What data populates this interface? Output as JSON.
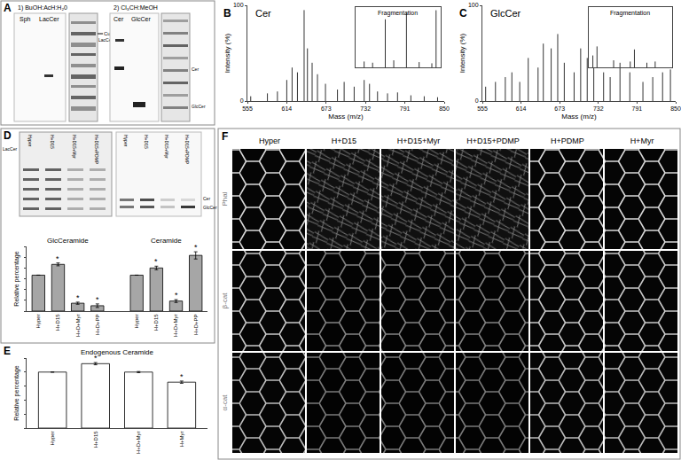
{
  "panels": {
    "A": {
      "label": "A",
      "solvent_1": "1) BuOH:AcH:H₂0",
      "solvent_2": "2) Cl₃CH:MeOH",
      "lanes_1": [
        "Sph",
        "LacCer"
      ],
      "lanes_2": [
        "Cer",
        "GlcCer"
      ],
      "marks_1": [
        "Cut",
        "LacCer"
      ],
      "marks_2": [
        "Cer",
        "GlcCer"
      ]
    },
    "D_plate": {
      "label": "D",
      "lanes": [
        "Hyper",
        "H+D15",
        "H+D15+Myr",
        "H+D15+PDMP"
      ],
      "marks_left": [
        "LacCer"
      ],
      "marks_right": [
        "Cer",
        "GlcCer"
      ]
    },
    "E": {
      "label": "E"
    },
    "F": {
      "label": "F",
      "columns": [
        "Hyper",
        "H+D15",
        "H+D15+Myr",
        "H+D15+PDMP",
        "H+PDMP",
        "H+Myr"
      ],
      "rows": [
        "Phal",
        "β-cat",
        "α-cat"
      ]
    }
  },
  "chart_data": [
    {
      "panel": "B",
      "type": "stem",
      "title": "Cer",
      "color": "#333333",
      "x": [
        560,
        585,
        600,
        614,
        622,
        630,
        640,
        645,
        652,
        660,
        672,
        690,
        700,
        715,
        730,
        738,
        750,
        765,
        780,
        800,
        820,
        840
      ],
      "values": [
        5,
        8,
        10,
        22,
        35,
        30,
        95,
        55,
        40,
        28,
        18,
        12,
        20,
        15,
        22,
        18,
        10,
        8,
        9,
        6,
        5,
        4
      ],
      "xlim": [
        555,
        850
      ],
      "xticks": [
        555,
        614,
        673,
        732,
        791,
        850
      ],
      "ylim": [
        0,
        100
      ],
      "yticks": [
        0,
        100
      ],
      "x_label": "Mass (m/z)",
      "y_label": "Intensity (%)",
      "inset": {
        "title": "Fragmentation",
        "x": [
          10,
          20,
          35,
          45,
          60,
          75,
          90,
          95
        ],
        "values": [
          10,
          8,
          80,
          12,
          90,
          9,
          7,
          95
        ],
        "xlim": [
          0,
          100
        ],
        "ylim": [
          0,
          100
        ]
      }
    },
    {
      "panel": "C",
      "type": "stem",
      "title": "GlcCer",
      "color": "#333333",
      "x": [
        560,
        575,
        590,
        600,
        612,
        625,
        640,
        648,
        660,
        670,
        680,
        695,
        705,
        715,
        725,
        740,
        750,
        765,
        780,
        800,
        815,
        830,
        842
      ],
      "values": [
        15,
        20,
        25,
        30,
        20,
        45,
        35,
        60,
        55,
        70,
        40,
        30,
        55,
        45,
        35,
        30,
        25,
        40,
        30,
        20,
        25,
        30,
        33
      ],
      "xlim": [
        555,
        850
      ],
      "xticks": [
        555,
        614,
        673,
        732,
        791,
        850
      ],
      "ylim": [
        0,
        100
      ],
      "yticks": [
        0,
        100
      ],
      "x_label": "Mass (m/z)",
      "y_label": "Intensity (%)",
      "inset": {
        "title": "Fragmentation",
        "x": [
          5,
          10,
          30,
          50,
          55,
          70,
          80
        ],
        "values": [
          20,
          35,
          12,
          10,
          30,
          8,
          10
        ],
        "xlim": [
          0,
          100
        ],
        "ylim": [
          0,
          100
        ]
      }
    },
    {
      "panel": "D",
      "type": "bar",
      "color": "#a6a6a6",
      "tick_labels": "x",
      "y_label": "Relative percentage",
      "ylim": [
        0,
        180
      ],
      "yticks": [
        0,
        30,
        60,
        90,
        120,
        150,
        180
      ],
      "groups": [
        {
          "name": "GlcCeramide",
          "categories": [
            "Hyper",
            "H+D15",
            "H+D+Myr",
            "H+D+PP"
          ],
          "values": [
            100,
            130,
            22,
            15
          ],
          "errors": [
            0,
            4,
            3,
            5
          ],
          "significance": [
            null,
            "*",
            "*",
            "*"
          ]
        },
        {
          "name": "Ceramide",
          "categories": [
            "Hyper",
            "H+D15",
            "H+D+Myr",
            "H+D+PP"
          ],
          "values": [
            100,
            120,
            28,
            155
          ],
          "errors": [
            0,
            5,
            4,
            10
          ],
          "significance": [
            null,
            "*",
            "*",
            "*"
          ]
        }
      ]
    },
    {
      "panel": "E",
      "type": "bar",
      "title": "Endogenous Ceramide",
      "color": "#ffffff",
      "tick_labels": "x",
      "y_label": "Relative percentage",
      "ylim": [
        0,
        125
      ],
      "yticks": [
        0,
        25,
        50,
        75,
        100,
        125
      ],
      "categories": [
        "Hyper",
        "H+D15",
        "H+D+Myr",
        "H+Myr"
      ],
      "values": [
        100,
        115,
        100,
        82
      ],
      "errors": [
        0,
        2,
        1,
        2
      ],
      "significance": [
        null,
        "*",
        null,
        "*"
      ]
    }
  ]
}
